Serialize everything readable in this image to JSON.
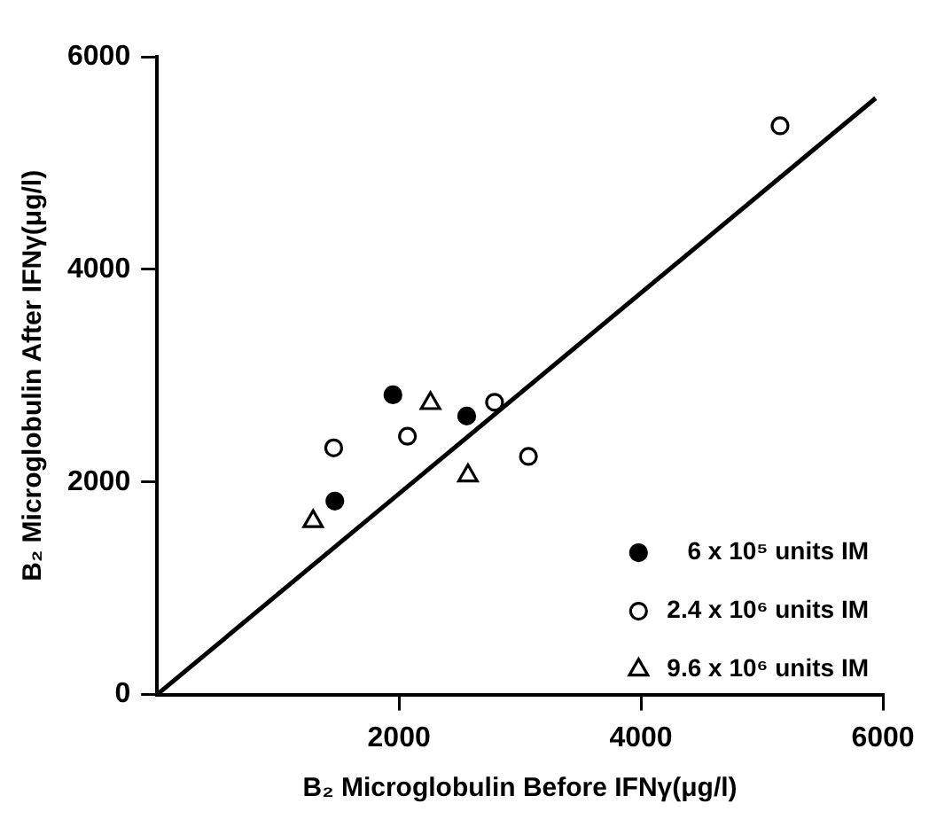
{
  "chart_data": {
    "type": "scatter",
    "xlabel": "B₂ Microglobulin Before IFNγ(μg/l)",
    "ylabel": "B₂ Microglobulin After IFNγ(μg/l)",
    "xlim": [
      0,
      6000
    ],
    "ylim": [
      0,
      6000
    ],
    "xticks": [
      2000,
      4000,
      6000
    ],
    "yticks": [
      0,
      2000,
      4000,
      6000
    ],
    "grid": false,
    "legend": "bottom right",
    "series": [
      {
        "name": "6 x 10⁵ units IM",
        "color": "#000000",
        "marker": "circle",
        "x": [
          1950,
          2560,
          1470
        ],
        "values": [
          2820,
          2620,
          1820
        ]
      },
      {
        "name": "2.4 x 10⁶ units IM",
        "color": "#ffffff",
        "marker": "circle",
        "x": [
          5150,
          1460,
          2070,
          2790,
          3070
        ],
        "values": [
          5350,
          2320,
          2430,
          2750,
          2240
        ]
      },
      {
        "name": "9.6 x 10⁶ units IM",
        "color": "#ffffff",
        "marker": "triangle",
        "x": [
          2260,
          2570,
          1290
        ],
        "values": [
          2740,
          2060,
          1630
        ]
      },
      {
        "type": "line",
        "color": "#000000",
        "marker": "none",
        "x": [
          0,
          5940
        ],
        "values": [
          0,
          5610
        ]
      }
    ]
  }
}
